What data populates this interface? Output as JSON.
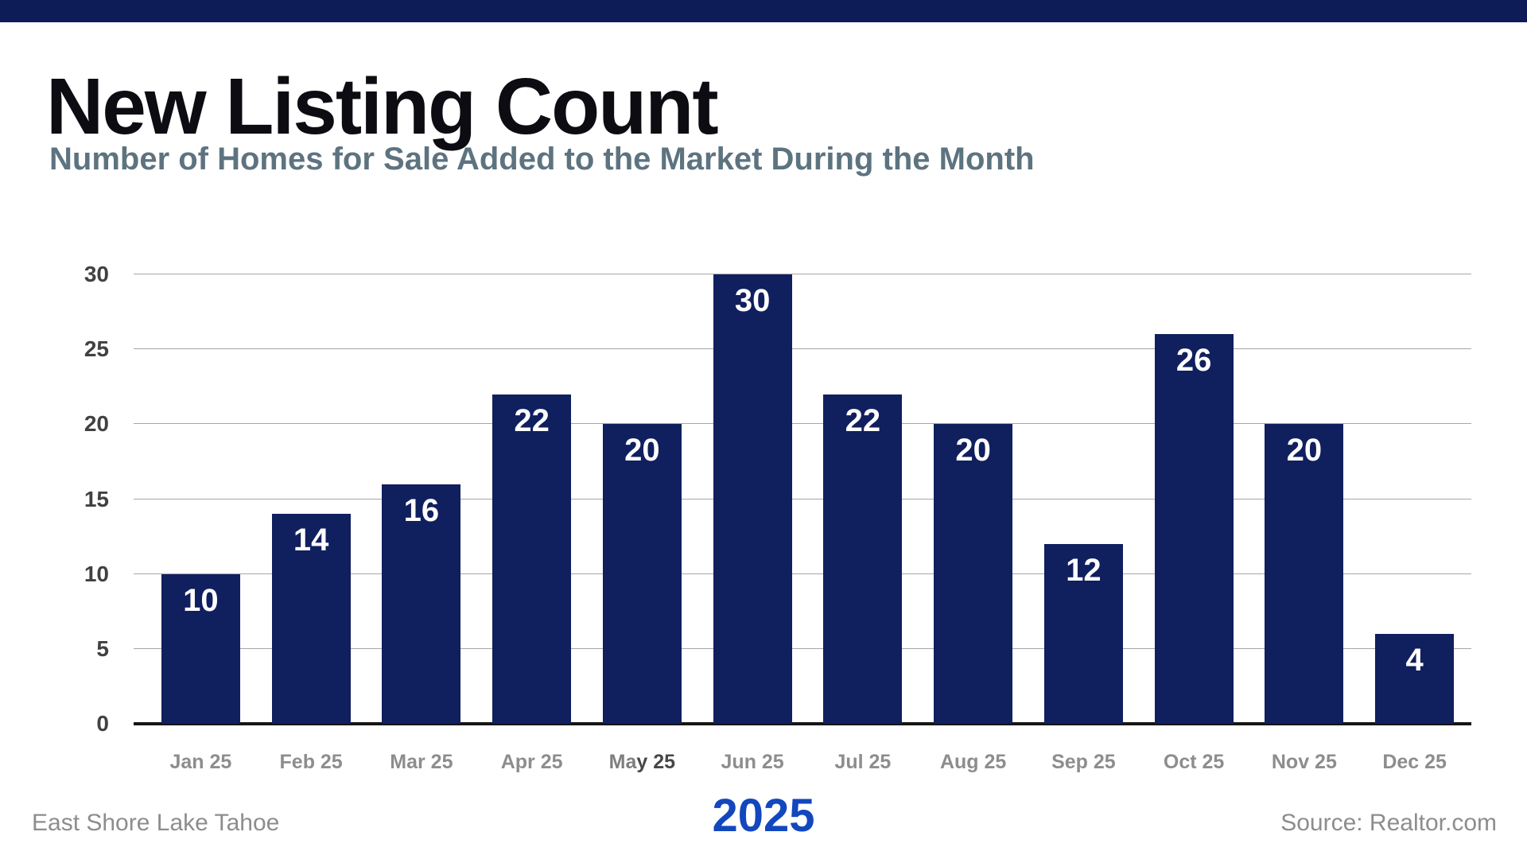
{
  "page": {
    "title": "New Listing Count",
    "subtitle": "Number of Homes for Sale Added to the Market During the Month",
    "footer_left": "East Shore Lake Tahoe",
    "footer_center": "2025",
    "footer_right": "Source: Realtor.com"
  },
  "colors": {
    "top_bar": "#0d1b57",
    "title": "#0c0c12",
    "subtitle": "#5d7380",
    "bar_fill": "#101f5e",
    "bar_value": "#ffffff",
    "gridline": "#a6a6a6",
    "baseline": "#151515",
    "y_axis_label": "#414141",
    "month_label": "#8d8d8d",
    "month_label_light": "#7f7f7f",
    "month_label_dark": "#474747",
    "year_accent": "#1247be",
    "footnote": "#8d8d8d"
  },
  "chart_data": {
    "type": "bar",
    "title": "New Listing Count",
    "subtitle": "Number of Homes for Sale Added to the Market During the Month",
    "categories": [
      "Jan 25",
      "Feb 25",
      "Mar 25",
      "Apr 25",
      "May 25",
      "Jun 25",
      "Jul 25",
      "Aug 25",
      "Sep 25",
      "Oct 25",
      "Nov 25",
      "Dec 25"
    ],
    "values": [
      10,
      14,
      16,
      22,
      20,
      30,
      22,
      20,
      12,
      26,
      20,
      4
    ],
    "visual_bar_heights": [
      10,
      14,
      16,
      22,
      20,
      30,
      22,
      20,
      12,
      26,
      20,
      6
    ],
    "y_ticks": [
      0,
      5,
      10,
      15,
      20,
      25,
      30
    ],
    "ylim": [
      0,
      30
    ],
    "xlabel": "2025",
    "ylabel": "",
    "grid": "horizontal",
    "legend": "none",
    "data_labels": "inside-top",
    "emphasized_category": "May 25",
    "emphasized_label_parts": {
      "light": "Ma",
      "dark": "y 25"
    }
  }
}
